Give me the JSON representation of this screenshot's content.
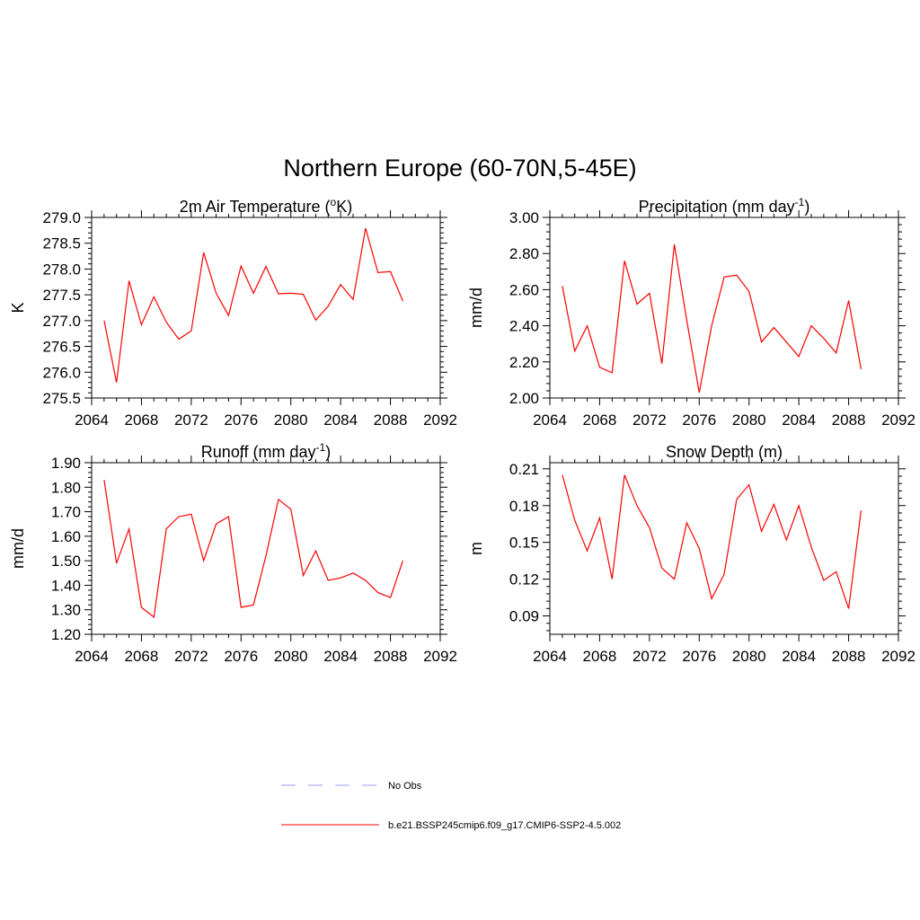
{
  "figure": {
    "title": "Northern Europe (60-70N,5-45E)"
  },
  "legend": [
    {
      "label": "No Obs",
      "color": "#9999ff",
      "style": "dashed"
    },
    {
      "label": "b.e21.BSSP245cmip6.f09_g17.CMIP6-SSP2-4.5.002",
      "color": "#ff0000",
      "style": "solid"
    }
  ],
  "chart_data": [
    {
      "type": "line",
      "title": "2m Air Temperature (oK)",
      "title_parts": {
        "pre": "2m Air Temperature (",
        "sup": "o",
        "post": "K)"
      },
      "xlabel": "",
      "ylabel": "K",
      "xlim": [
        2064,
        2092
      ],
      "ylim": [
        275.5,
        279.0
      ],
      "xticks": [
        "2064",
        "2068",
        "2072",
        "2076",
        "2080",
        "2084",
        "2088",
        "2092"
      ],
      "yticks": [
        "275.5",
        "276.0",
        "276.5",
        "277.0",
        "277.5",
        "278.0",
        "278.5",
        "279.0"
      ],
      "series": [
        {
          "name": "b.e21.BSSP245cmip6.f09_g17.CMIP6-SSP2-4.5.002",
          "color": "#ff0000",
          "x": [
            2065,
            2066,
            2067,
            2068,
            2069,
            2070,
            2071,
            2072,
            2073,
            2074,
            2075,
            2076,
            2077,
            2078,
            2079,
            2080,
            2081,
            2082,
            2083,
            2084,
            2085,
            2086,
            2087,
            2088,
            2089
          ],
          "values": [
            277.0,
            275.8,
            277.77,
            276.92,
            277.46,
            276.97,
            276.64,
            276.8,
            278.32,
            277.53,
            277.1,
            278.06,
            277.53,
            278.05,
            277.52,
            277.53,
            277.51,
            277.01,
            277.28,
            277.7,
            277.41,
            278.79,
            277.93,
            277.95,
            277.38
          ]
        }
      ]
    },
    {
      "type": "line",
      "title": "Precipitation (mm day-1)",
      "title_parts": {
        "pre": "Precipitation (mm day",
        "sup": "-1",
        "post": ")"
      },
      "xlabel": "",
      "ylabel": "mm/d",
      "xlim": [
        2064,
        2092
      ],
      "ylim": [
        2.0,
        3.0
      ],
      "xticks": [
        "2064",
        "2068",
        "2072",
        "2076",
        "2080",
        "2084",
        "2088",
        "2092"
      ],
      "yticks": [
        "2.00",
        "2.20",
        "2.40",
        "2.60",
        "2.80",
        "3.00"
      ],
      "series": [
        {
          "name": "b.e21.BSSP245cmip6.f09_g17.CMIP6-SSP2-4.5.002",
          "color": "#ff0000",
          "x": [
            2065,
            2066,
            2067,
            2068,
            2069,
            2070,
            2071,
            2072,
            2073,
            2074,
            2075,
            2076,
            2077,
            2078,
            2079,
            2080,
            2081,
            2082,
            2083,
            2084,
            2085,
            2086,
            2087,
            2088,
            2089
          ],
          "values": [
            2.62,
            2.26,
            2.4,
            2.17,
            2.14,
            2.76,
            2.52,
            2.58,
            2.19,
            2.85,
            2.43,
            2.03,
            2.4,
            2.67,
            2.68,
            2.59,
            2.31,
            2.39,
            2.31,
            2.23,
            2.4,
            2.33,
            2.25,
            2.54,
            2.16
          ]
        }
      ]
    },
    {
      "type": "line",
      "title": "Runoff (mm day-1)",
      "title_parts": {
        "pre": "Runoff (mm day",
        "sup": "-1",
        "post": ")"
      },
      "xlabel": "",
      "ylabel": "mm/d",
      "xlim": [
        2064,
        2092
      ],
      "ylim": [
        1.2,
        1.9
      ],
      "xticks": [
        "2064",
        "2068",
        "2072",
        "2076",
        "2080",
        "2084",
        "2088",
        "2092"
      ],
      "yticks": [
        "1.20",
        "1.30",
        "1.40",
        "1.50",
        "1.60",
        "1.70",
        "1.80",
        "1.90"
      ],
      "series": [
        {
          "name": "b.e21.BSSP245cmip6.f09_g17.CMIP6-SSP2-4.5.002",
          "color": "#ff0000",
          "x": [
            2065,
            2066,
            2067,
            2068,
            2069,
            2070,
            2071,
            2072,
            2073,
            2074,
            2075,
            2076,
            2077,
            2078,
            2079,
            2080,
            2081,
            2082,
            2083,
            2084,
            2085,
            2086,
            2087,
            2088,
            2089
          ],
          "values": [
            1.83,
            1.49,
            1.63,
            1.31,
            1.27,
            1.63,
            1.68,
            1.69,
            1.5,
            1.65,
            1.68,
            1.31,
            1.32,
            1.52,
            1.75,
            1.71,
            1.44,
            1.54,
            1.42,
            1.43,
            1.45,
            1.42,
            1.37,
            1.35,
            1.5
          ]
        }
      ]
    },
    {
      "type": "line",
      "title": "Snow Depth (m)",
      "title_parts": {
        "pre": "Snow Depth (m)",
        "sup": "",
        "post": ""
      },
      "xlabel": "",
      "ylabel": "m",
      "xlim": [
        2064,
        2092
      ],
      "ylim": [
        0.075,
        0.215
      ],
      "xticks": [
        "2064",
        "2068",
        "2072",
        "2076",
        "2080",
        "2084",
        "2088",
        "2092"
      ],
      "yticks": [
        "0.09",
        "0.12",
        "0.15",
        "0.18",
        "0.21"
      ],
      "ytick_values": [
        0.09,
        0.12,
        0.15,
        0.18,
        0.21
      ],
      "series": [
        {
          "name": "b.e21.BSSP245cmip6.f09_g17.CMIP6-SSP2-4.5.002",
          "color": "#ff0000",
          "x": [
            2065,
            2066,
            2067,
            2068,
            2069,
            2070,
            2071,
            2072,
            2073,
            2074,
            2075,
            2076,
            2077,
            2078,
            2079,
            2080,
            2081,
            2082,
            2083,
            2084,
            2085,
            2086,
            2087,
            2088,
            2089
          ],
          "values": [
            0.205,
            0.168,
            0.143,
            0.17,
            0.12,
            0.205,
            0.18,
            0.162,
            0.129,
            0.12,
            0.166,
            0.145,
            0.104,
            0.124,
            0.185,
            0.197,
            0.159,
            0.181,
            0.152,
            0.18,
            0.146,
            0.119,
            0.126,
            0.096,
            0.176
          ]
        }
      ]
    }
  ]
}
